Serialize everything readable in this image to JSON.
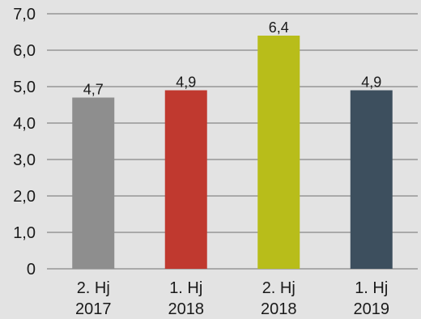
{
  "chart_data": {
    "type": "bar",
    "categories": [
      [
        "2. Hj",
        "2017"
      ],
      [
        "1. Hj",
        "2018"
      ],
      [
        "2. Hj",
        "2018"
      ],
      [
        "1. Hj",
        "2019"
      ]
    ],
    "values": [
      4.7,
      4.9,
      6.4,
      4.9
    ],
    "value_labels": [
      "4,7",
      "4,9",
      "6,4",
      "4,9"
    ],
    "colors": [
      "#8e8e8e",
      "#c0392f",
      "#b8bd1a",
      "#3d4f5e"
    ],
    "ylim": [
      0,
      7
    ],
    "yticks": [
      0,
      1,
      2,
      3,
      4,
      5,
      6,
      7
    ],
    "ytick_labels": [
      "0",
      "1,0",
      "2,0",
      "3,0",
      "4,0",
      "5,0",
      "6,0",
      "7,0"
    ],
    "grid": true,
    "title": "",
    "xlabel": "",
    "ylabel": ""
  }
}
